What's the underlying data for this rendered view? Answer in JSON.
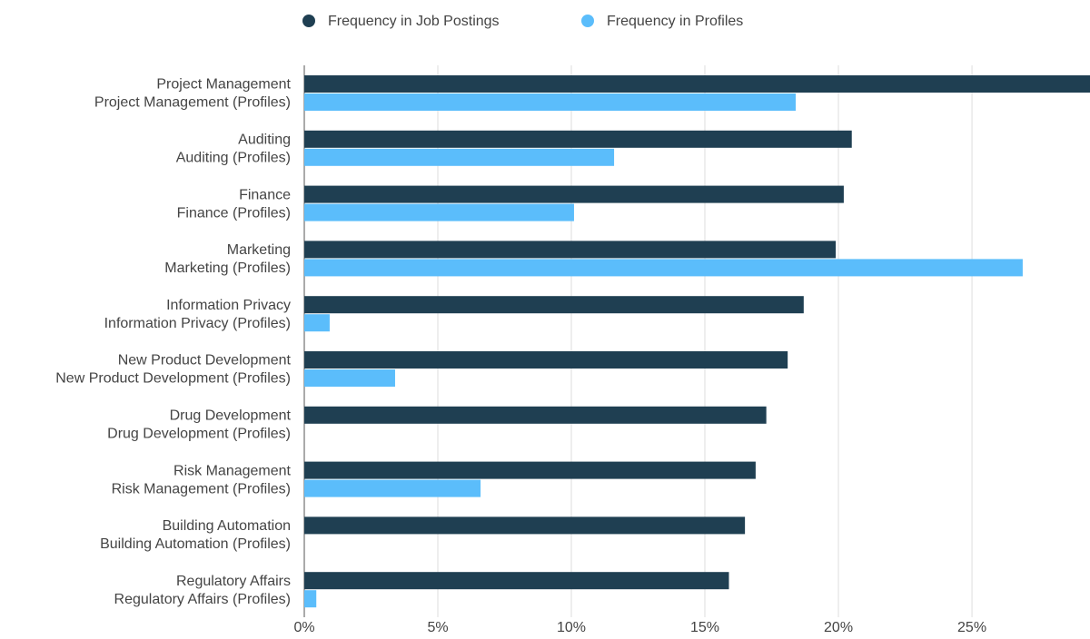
{
  "chart_data": {
    "type": "barh",
    "categories": [
      "Project Management",
      "Auditing",
      "Finance",
      "Marketing",
      "Information Privacy",
      "New Product Development",
      "Drug Development",
      "Risk Management",
      "Building Automation",
      "Regulatory Affairs"
    ],
    "series": [
      {
        "name": "Frequency in Job Postings",
        "color": "#1f3f52",
        "labels": [
          "Project Management",
          "Auditing",
          "Finance",
          "Marketing",
          "Information Privacy",
          "New Product Development",
          "Drug Development",
          "Risk Management",
          "Building Automation",
          "Regulatory Affairs"
        ],
        "values": [
          30,
          20.5,
          20.2,
          19.9,
          18.7,
          18.1,
          17.3,
          16.9,
          16.5,
          15.9
        ]
      },
      {
        "name": "Frequency in Profiles",
        "color": "#5bbdfb",
        "labels": [
          "Project Management (Profiles)",
          "Auditing (Profiles)",
          "Finance (Profiles)",
          "Marketing (Profiles)",
          "Information Privacy (Profiles)",
          "New Product Development (Profiles)",
          "Drug Development (Profiles)",
          "Risk Management (Profiles)",
          "Building Automation (Profiles)",
          "Regulatory Affairs (Profiles)"
        ],
        "values": [
          18.4,
          11.6,
          10.1,
          26.9,
          0.95,
          3.4,
          0,
          6.6,
          0,
          0.45
        ]
      }
    ],
    "xlim": [
      0,
      29.42
    ],
    "xticks": [
      {
        "value": 0,
        "label": "0%"
      },
      {
        "value": 5,
        "label": "5%"
      },
      {
        "value": 10,
        "label": "10%"
      },
      {
        "value": 15,
        "label": "15%"
      },
      {
        "value": 20,
        "label": "20%"
      },
      {
        "value": 25,
        "label": "25%"
      }
    ],
    "grid": true,
    "legend": "top"
  }
}
